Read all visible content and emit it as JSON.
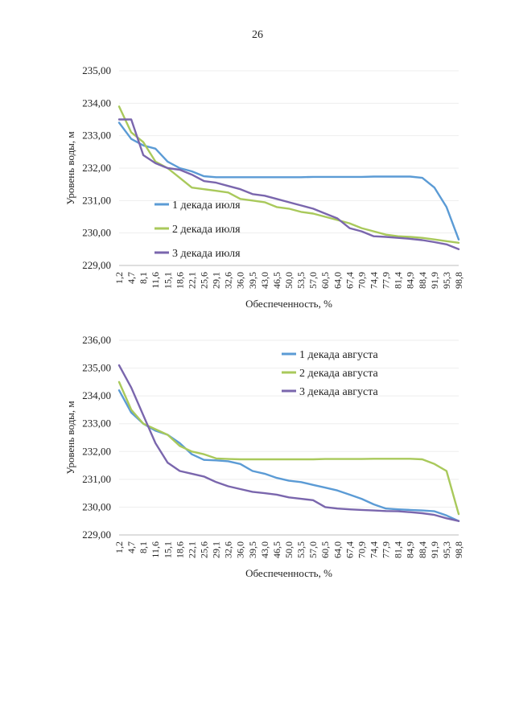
{
  "page": {
    "number": "26"
  },
  "colors": {
    "series1": "#5b9bd5",
    "series2": "#a9c95b",
    "series3": "#7a66ad",
    "axis": "#bdbdbd",
    "grid": "#eeeeee"
  },
  "chart_data": [
    {
      "type": "line",
      "xlabel": "Обеспеченность, %",
      "ylabel": "Уровень воды, м",
      "ylim": [
        229,
        235
      ],
      "y_ticks": [
        "229,00",
        "230,00",
        "231,00",
        "232,00",
        "233,00",
        "234,00",
        "235,00"
      ],
      "x_tick_labels": [
        "1,2",
        "4,7",
        "8,1",
        "11,6",
        "15,1",
        "18,6",
        "22,1",
        "25,6",
        "29,1",
        "32,6",
        "36,0",
        "39,5",
        "43,0",
        "46,5",
        "50,0",
        "53,5",
        "57,0",
        "60,5",
        "64,0",
        "67,4",
        "70,9",
        "74,4",
        "77,9",
        "81,4",
        "84,9",
        "88,4",
        "91,9",
        "95,3",
        "98,8"
      ],
      "x": [
        1.2,
        4.7,
        8.1,
        11.6,
        15.1,
        18.6,
        22.1,
        25.6,
        29.1,
        32.6,
        36.0,
        39.5,
        43.0,
        46.5,
        50.0,
        53.5,
        57.0,
        60.5,
        64.0,
        67.4,
        70.9,
        74.4,
        77.9,
        81.4,
        84.9,
        88.4,
        91.9,
        95.3,
        98.8
      ],
      "legend_position": "left",
      "series": [
        {
          "name": "1 декада июля",
          "values": [
            233.4,
            232.9,
            232.7,
            232.6,
            232.2,
            232.0,
            231.9,
            231.75,
            231.72,
            231.72,
            231.72,
            231.72,
            231.72,
            231.72,
            231.72,
            231.72,
            231.73,
            231.73,
            231.73,
            231.73,
            231.73,
            231.74,
            231.74,
            231.74,
            231.74,
            231.7,
            231.4,
            230.8,
            229.8
          ]
        },
        {
          "name": "2 декада июля",
          "values": [
            233.9,
            233.1,
            232.8,
            232.2,
            232.0,
            231.7,
            231.4,
            231.35,
            231.3,
            231.25,
            231.05,
            231.0,
            230.95,
            230.8,
            230.75,
            230.65,
            230.6,
            230.5,
            230.4,
            230.3,
            230.15,
            230.05,
            229.95,
            229.9,
            229.88,
            229.85,
            229.8,
            229.75,
            229.7
          ]
        },
        {
          "name": "3 декада июля",
          "values": [
            233.5,
            233.5,
            232.4,
            232.15,
            232.0,
            231.95,
            231.8,
            231.6,
            231.55,
            231.45,
            231.35,
            231.2,
            231.15,
            231.05,
            230.95,
            230.85,
            230.75,
            230.6,
            230.45,
            230.15,
            230.05,
            229.9,
            229.88,
            229.85,
            229.82,
            229.78,
            229.72,
            229.65,
            229.5
          ]
        }
      ]
    },
    {
      "type": "line",
      "xlabel": "Обеспеченность, %",
      "ylabel": "Уровень воды, м",
      "ylim": [
        229,
        236
      ],
      "y_ticks": [
        "229,00",
        "230,00",
        "231,00",
        "232,00",
        "233,00",
        "234,00",
        "235,00",
        "236,00"
      ],
      "x_tick_labels": [
        "1,2",
        "4,7",
        "8,1",
        "11,6",
        "15,1",
        "18,6",
        "22,1",
        "25,6",
        "29,1",
        "32,6",
        "36,0",
        "39,5",
        "43,0",
        "46,5",
        "50,0",
        "53,5",
        "57,0",
        "60,5",
        "64,0",
        "67,4",
        "70,9",
        "74,4",
        "77,9",
        "81,4",
        "84,9",
        "88,4",
        "91,9",
        "95,3",
        "98,8"
      ],
      "x": [
        1.2,
        4.7,
        8.1,
        11.6,
        15.1,
        18.6,
        22.1,
        25.6,
        29.1,
        32.6,
        36.0,
        39.5,
        43.0,
        46.5,
        50.0,
        53.5,
        57.0,
        60.5,
        64.0,
        67.4,
        70.9,
        74.4,
        77.9,
        81.4,
        84.9,
        88.4,
        91.9,
        95.3,
        98.8
      ],
      "legend_position": "top-right",
      "series": [
        {
          "name": "1 декада августа",
          "values": [
            234.2,
            233.4,
            233.0,
            232.75,
            232.6,
            232.3,
            231.9,
            231.7,
            231.68,
            231.65,
            231.55,
            231.3,
            231.2,
            231.05,
            230.95,
            230.9,
            230.8,
            230.7,
            230.6,
            230.45,
            230.3,
            230.1,
            229.95,
            229.92,
            229.9,
            229.88,
            229.85,
            229.7,
            229.5
          ]
        },
        {
          "name": "2 декада августа",
          "values": [
            234.5,
            233.5,
            233.0,
            232.8,
            232.6,
            232.2,
            232.0,
            231.9,
            231.75,
            231.73,
            231.72,
            231.72,
            231.72,
            231.72,
            231.72,
            231.72,
            231.72,
            231.73,
            231.73,
            231.73,
            231.73,
            231.74,
            231.74,
            231.74,
            231.74,
            231.72,
            231.55,
            231.3,
            229.75
          ]
        },
        {
          "name": "3 декада августа",
          "values": [
            235.1,
            234.3,
            233.3,
            232.3,
            231.6,
            231.3,
            231.2,
            231.1,
            230.9,
            230.75,
            230.65,
            230.55,
            230.5,
            230.45,
            230.35,
            230.3,
            230.25,
            230.0,
            229.95,
            229.92,
            229.9,
            229.88,
            229.86,
            229.85,
            229.82,
            229.78,
            229.72,
            229.6,
            229.5
          ]
        }
      ]
    }
  ]
}
